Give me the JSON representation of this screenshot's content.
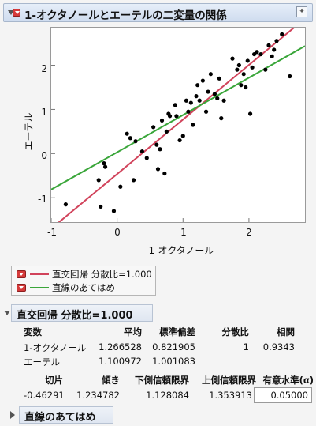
{
  "window": {
    "title": "1-オクタノールとエーテルの二変量の関係"
  },
  "chart_data": {
    "type": "scatter",
    "xlabel": "1-オクタノール",
    "ylabel": "エーテル",
    "xlim": [
      -1,
      2.85
    ],
    "ylim": [
      -1.55,
      2.85
    ],
    "xticks": [
      "-1",
      "0",
      "1",
      "2"
    ],
    "yticks": [
      "-1",
      "0",
      "1",
      "2"
    ],
    "x": [
      -0.78,
      -0.28,
      -0.25,
      -0.2,
      -0.18,
      -0.05,
      0.05,
      0.15,
      0.2,
      0.25,
      0.28,
      0.38,
      0.45,
      0.55,
      0.6,
      0.62,
      0.65,
      0.68,
      0.72,
      0.75,
      0.78,
      0.8,
      0.88,
      0.9,
      0.95,
      1.0,
      1.05,
      1.08,
      1.12,
      1.15,
      1.2,
      1.22,
      1.25,
      1.3,
      1.35,
      1.38,
      1.42,
      1.48,
      1.52,
      1.55,
      1.58,
      1.62,
      1.75,
      1.82,
      1.85,
      1.88,
      1.92,
      1.95,
      1.98,
      2.02,
      2.05,
      2.08,
      2.12,
      2.18,
      2.25,
      2.3,
      2.35,
      2.38,
      2.42,
      2.5,
      2.62
    ],
    "y": [
      -1.15,
      -0.6,
      -1.2,
      -0.22,
      -0.3,
      -1.3,
      -0.75,
      0.45,
      0.35,
      -0.6,
      0.28,
      0.05,
      -0.1,
      0.6,
      0.2,
      -0.35,
      0.1,
      0.75,
      -0.45,
      0.5,
      0.9,
      0.85,
      1.1,
      0.85,
      0.3,
      0.4,
      1.2,
      0.95,
      1.15,
      0.65,
      1.3,
      1.55,
      1.2,
      1.65,
      0.95,
      1.4,
      1.8,
      1.35,
      1.25,
      1.7,
      0.8,
      1.2,
      2.15,
      1.9,
      2.0,
      1.55,
      1.8,
      1.5,
      2.1,
      0.9,
      1.95,
      2.25,
      2.3,
      2.25,
      1.9,
      2.45,
      2.2,
      2.35,
      2.55,
      2.7,
      1.75
    ],
    "series": [
      {
        "name": "直交回帰 分散比=1.000",
        "color": "#d1435b",
        "intercept": -0.46291,
        "slope": 1.234782
      },
      {
        "name": "直線のあてはめ",
        "color": "#3aa63a",
        "intercept": 0.03,
        "slope": 0.8437
      }
    ],
    "point_color": "#000000"
  },
  "legend": {
    "items": [
      {
        "label": "直交回帰 分散比=1.000",
        "color": "#d1435b"
      },
      {
        "label": "直線のあてはめ",
        "color": "#3aa63a"
      }
    ]
  },
  "orth": {
    "title": "直交回帰 分散比=1.000",
    "headers": [
      "変数",
      "平均",
      "標準偏差",
      "分散比",
      "相関"
    ],
    "rows": [
      [
        "1-オクタノール",
        "1.266528",
        "0.821905",
        "1",
        "0.9343"
      ],
      [
        "エーテル",
        "1.100972",
        "1.001083",
        "",
        ""
      ]
    ],
    "headers2": [
      "切片",
      "傾き",
      "下側信頼限界",
      "上側信頼限界",
      "有意水準(α)"
    ],
    "row2": [
      "-0.46291",
      "1.234782",
      "1.128084",
      "1.353913"
    ],
    "alpha": "0.05000"
  },
  "fit": {
    "title": "直線のあてはめ"
  }
}
